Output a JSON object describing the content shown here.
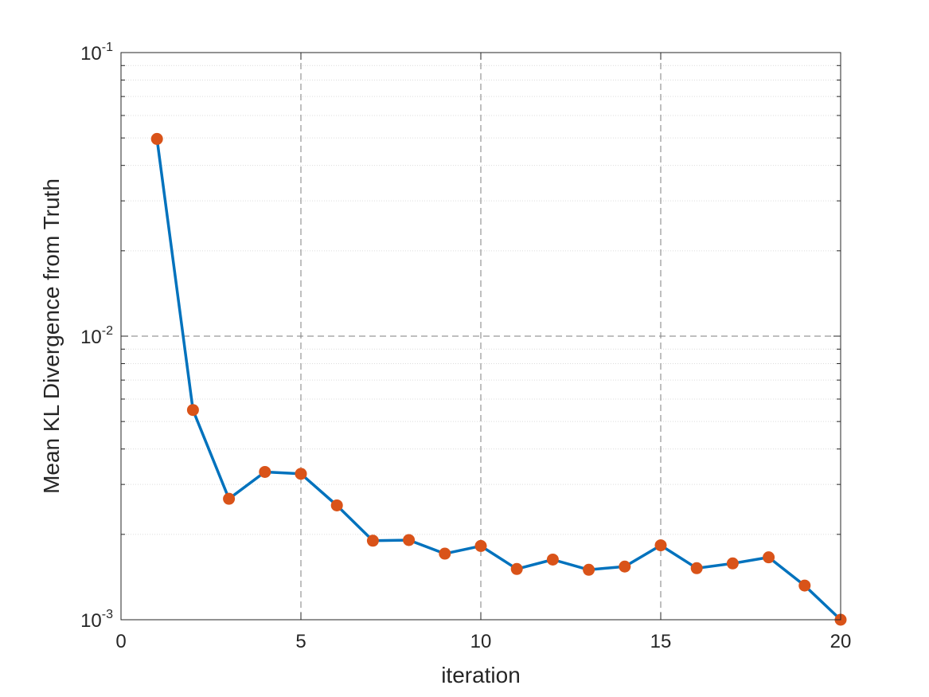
{
  "chart_data": {
    "type": "line",
    "title": "",
    "xlabel": "iteration",
    "ylabel": "Mean KL Divergence from Truth",
    "xlim": [
      0,
      20
    ],
    "ylim": [
      0.001,
      0.1
    ],
    "yscale": "log",
    "grid": true,
    "x_ticks": [
      0,
      5,
      10,
      15,
      20
    ],
    "y_ticks": [
      0.001,
      0.01,
      0.1
    ],
    "y_tick_labels": [
      {
        "base": "10",
        "exp": "-3"
      },
      {
        "base": "10",
        "exp": "-2"
      },
      {
        "base": "10",
        "exp": "-1"
      }
    ],
    "series": [
      {
        "line_color": "#0072BD",
        "marker_color": "#D95319",
        "x": [
          1,
          2,
          3,
          4,
          5,
          6,
          7,
          8,
          9,
          10,
          11,
          12,
          13,
          14,
          15,
          16,
          17,
          18,
          19,
          20
        ],
        "values": [
          0.0496,
          0.00549,
          0.00267,
          0.00332,
          0.00327,
          0.00253,
          0.0019,
          0.00191,
          0.00171,
          0.00182,
          0.00151,
          0.00163,
          0.0015,
          0.00154,
          0.00183,
          0.00152,
          0.00158,
          0.00166,
          0.00132,
          0.001
        ]
      }
    ]
  }
}
